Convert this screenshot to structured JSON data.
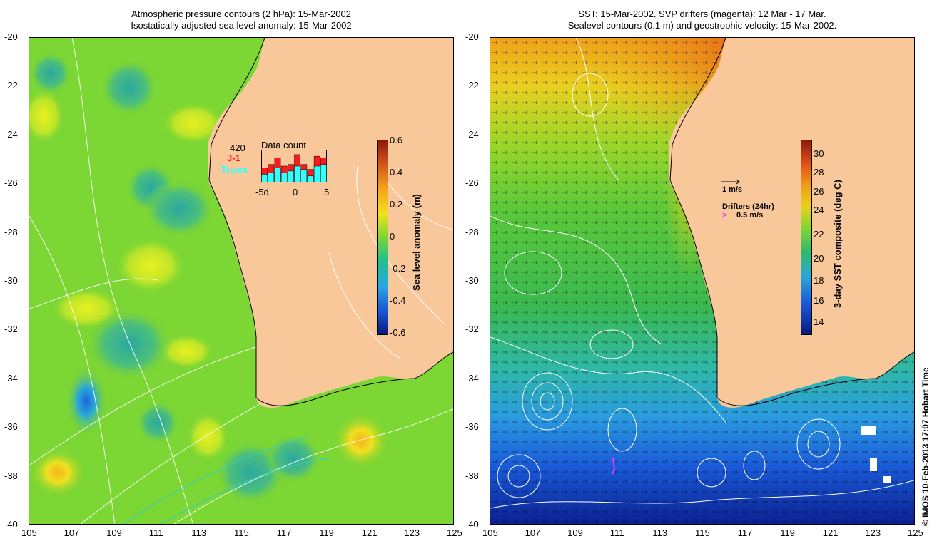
{
  "left_panel": {
    "title_line1": "Atmospheric pressure contours (2 hPa): 15-Mar-2002",
    "title_line2": "Isostatically adjusted sea level anomaly: 15-Mar-2002",
    "colorbar_label": "Sea level anomaly (m)",
    "colorbar_ticks": [
      "0.6",
      "0.4",
      "0.2",
      "0",
      "-0.2",
      "-0.4",
      "-0.6"
    ],
    "inset": {
      "count": "420",
      "label_j1": "J-1",
      "label_topex": "Topex",
      "title": "Data count",
      "ticks": [
        "-5d",
        "0",
        "5"
      ],
      "bars": [
        {
          "j1": 0.45,
          "topex": 0.25
        },
        {
          "j1": 0.55,
          "topex": 0.3
        },
        {
          "j1": 0.75,
          "topex": 0.45
        },
        {
          "j1": 0.5,
          "topex": 0.3
        },
        {
          "j1": 0.55,
          "topex": 0.35
        },
        {
          "j1": 0.85,
          "topex": 0.5
        },
        {
          "j1": 0.55,
          "topex": 0.4
        },
        {
          "j1": 0.4,
          "topex": 0.2
        },
        {
          "j1": 0.8,
          "topex": 0.5
        },
        {
          "j1": 0.75,
          "topex": 0.55
        }
      ]
    }
  },
  "right_panel": {
    "title_line1": "SST: 15-Mar-2002. SVP drifters (magenta): 12 Mar - 17 Mar.",
    "title_line2": "Sealevel contours (0.1 m) and geostrophic velocity: 15-Mar-2002.",
    "colorbar_label": "3-day SST composite (deg C)",
    "colorbar_ticks": [
      "30",
      "28",
      "26",
      "24",
      "22",
      "20",
      "18",
      "16",
      "14"
    ],
    "velocity_scale": "1 m/s",
    "drifters_label": "Drifters (24hr)",
    "drifters_scale": "0.5 m/s"
  },
  "axes": {
    "lat_ticks": [
      "-20",
      "-22",
      "-24",
      "-26",
      "-28",
      "-30",
      "-32",
      "-34",
      "-36",
      "-38",
      "-40"
    ],
    "lon_ticks": [
      "105",
      "107",
      "109",
      "111",
      "113",
      "115",
      "117",
      "119",
      "121",
      "123",
      "125"
    ]
  },
  "credit": "© IMOS 10-Feb-2013 17:07 Hobart Time",
  "colors": {
    "land": "#f9c89a",
    "sla_base": "#7cd633",
    "j1": "#ff1a1a",
    "topex": "#33ffff",
    "drifter": "#ff33ff"
  }
}
